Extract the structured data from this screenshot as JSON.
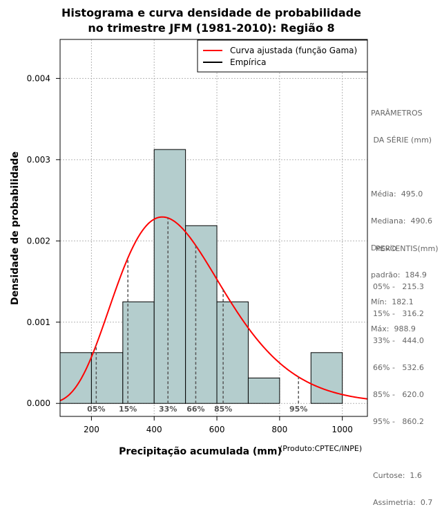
{
  "chart_data": {
    "type": "bar",
    "title": [
      "Histograma e curva densidade de probabilidade",
      "no trimestre JFM (1981-2010): Região 8"
    ],
    "xlabel": "Precipitação acumulada (mm)",
    "ylabel": "Densidade de probabilidade",
    "credit": "(Produto:CPTEC/INPE)",
    "xlim": [
      100,
      1080
    ],
    "ylim": [
      -0.00016,
      0.00448
    ],
    "x_ticks": [
      200,
      400,
      600,
      800,
      1000
    ],
    "y_ticks": [
      0.0,
      0.001,
      0.002,
      0.003,
      0.004
    ],
    "y_tick_labels": [
      "0.000",
      "0.001",
      "0.002",
      "0.003",
      "0.004"
    ],
    "grid": true,
    "bin_edges": [
      100,
      200,
      300,
      400,
      500,
      600,
      700,
      800,
      900,
      1000
    ],
    "values": [
      0.000625,
      0.000625,
      0.00125,
      0.003125,
      0.0021875,
      0.00125,
      0.0003125,
      0.0,
      0.000625
    ],
    "bar_color": "#b4cdcd",
    "curve_color": "#ff0000",
    "gamma_fit": {
      "mean": 495.0,
      "sd": 184.9
    },
    "legend": {
      "position": "top-right",
      "entries": [
        {
          "label": "Curva ajustada (função Gama)",
          "color": "#ff0000"
        },
        {
          "label": "Empírica",
          "color": "#000000"
        }
      ]
    },
    "percentile_markers": [
      {
        "label": "05%",
        "value": 215.3
      },
      {
        "label": "15%",
        "value": 316.2
      },
      {
        "label": "33%",
        "value": 444.0
      },
      {
        "label": "66%",
        "value": 532.6
      },
      {
        "label": "85%",
        "value": 620.0
      },
      {
        "label": "95%",
        "value": 860.2
      }
    ]
  },
  "side_panel": {
    "params_title_1": "PARÂMETROS",
    "params_title_2": " DA SÉRIE (mm)",
    "media": "Média:  495.0",
    "mediana": "Mediana:  490.6",
    "desvio_1": "Desvio",
    "desvio_2": "padrão:  184.9",
    "min": "Mín:  182.1",
    "max": "Máx:  988.9",
    "pct_title": "PERCENTIS(mm)",
    "p05": "05% -   215.3",
    "p15": "15% -   316.2",
    "p33": "33% -   444.0",
    "p66": "66% -   532.6",
    "p85": "85% -   620.0",
    "p95": "95% -   860.2",
    "curtose": "Curtose:  1.6",
    "assimetria": "Assimetria:  0.7"
  }
}
